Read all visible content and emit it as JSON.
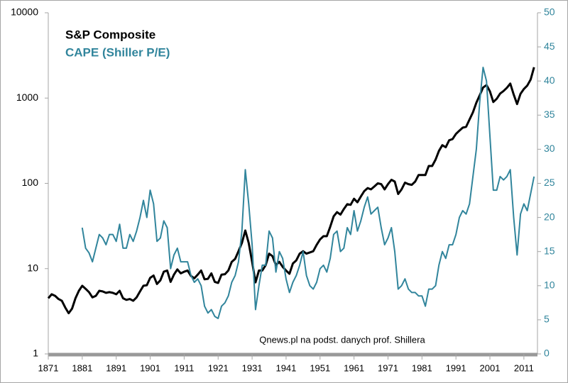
{
  "chart_data": {
    "type": "line",
    "ylog": true,
    "legend": "upper left",
    "annotation": "Qnews.pl na podst. danych prof. Shillera",
    "xlim": [
      1871,
      2015
    ],
    "xticks": [
      1871,
      1881,
      1891,
      1901,
      1911,
      1921,
      1931,
      1941,
      1951,
      1961,
      1971,
      1981,
      1991,
      2001,
      2011
    ],
    "ylim": [
      1,
      10000
    ],
    "yticks": [
      1,
      10,
      100,
      1000,
      10000
    ],
    "y2lim": [
      0,
      50
    ],
    "y2ticks": [
      0,
      5,
      10,
      15,
      20,
      25,
      30,
      35,
      40,
      45,
      50
    ],
    "x": [
      1871,
      1872,
      1873,
      1874,
      1875,
      1876,
      1877,
      1878,
      1879,
      1880,
      1881,
      1882,
      1883,
      1884,
      1885,
      1886,
      1887,
      1888,
      1889,
      1890,
      1891,
      1892,
      1893,
      1894,
      1895,
      1896,
      1897,
      1898,
      1899,
      1900,
      1901,
      1902,
      1903,
      1904,
      1905,
      1906,
      1907,
      1908,
      1909,
      1910,
      1911,
      1912,
      1913,
      1914,
      1915,
      1916,
      1917,
      1918,
      1919,
      1920,
      1921,
      1922,
      1923,
      1924,
      1925,
      1926,
      1927,
      1928,
      1929,
      1930,
      1931,
      1932,
      1933,
      1934,
      1935,
      1936,
      1937,
      1938,
      1939,
      1940,
      1941,
      1942,
      1943,
      1944,
      1945,
      1946,
      1947,
      1948,
      1949,
      1950,
      1951,
      1952,
      1953,
      1954,
      1955,
      1956,
      1957,
      1958,
      1959,
      1960,
      1961,
      1962,
      1963,
      1964,
      1965,
      1966,
      1967,
      1968,
      1969,
      1970,
      1971,
      1972,
      1973,
      1974,
      1975,
      1976,
      1977,
      1978,
      1979,
      1980,
      1981,
      1982,
      1983,
      1984,
      1985,
      1986,
      1987,
      1988,
      1989,
      1990,
      1991,
      1992,
      1993,
      1994,
      1995,
      1996,
      1997,
      1998,
      1999,
      2000,
      2001,
      2002,
      2003,
      2004,
      2005,
      2006,
      2007,
      2008,
      2009,
      2010,
      2011,
      2012,
      2013,
      2014
    ],
    "series": [
      {
        "name": "S&P Composite",
        "color": "#000000",
        "values": [
          4.5,
          5,
          4.8,
          4.4,
          4.2,
          3.5,
          3,
          3.4,
          4.5,
          5.5,
          6.3,
          5.8,
          5.3,
          4.6,
          4.8,
          5.5,
          5.4,
          5.2,
          5.3,
          5.2,
          5.0,
          5.5,
          4.5,
          4.3,
          4.4,
          4.2,
          4.6,
          5.4,
          6.3,
          6.4,
          7.8,
          8.3,
          6.6,
          7.3,
          9.2,
          9.5,
          7.0,
          8.5,
          9.8,
          8.8,
          9.2,
          9.5,
          8.2,
          7.7,
          8.5,
          9.5,
          7.5,
          7.6,
          8.8,
          7.0,
          6.8,
          8.5,
          8.6,
          9.5,
          12,
          13,
          16,
          20,
          28,
          20,
          12,
          6.9,
          9.5,
          9.5,
          11,
          15,
          14,
          11,
          12,
          10.5,
          9.5,
          8.7,
          11.5,
          12.5,
          15,
          16,
          15,
          15.5,
          16,
          19,
          22,
          24,
          24,
          31,
          41,
          46,
          43,
          50,
          57,
          56,
          66,
          60,
          70,
          81,
          88,
          85,
          92,
          100,
          98,
          85,
          98,
          110,
          105,
          75,
          85,
          102,
          98,
          96,
          105,
          125,
          125,
          125,
          160,
          160,
          190,
          240,
          280,
          265,
          320,
          330,
          380,
          415,
          450,
          460,
          560,
          680,
          880,
          1080,
          1330,
          1420,
          1200,
          900,
          980,
          1130,
          1210,
          1320,
          1480,
          1100,
          850,
          1120,
          1280,
          1400,
          1650,
          2300
        ]
      },
      {
        "name": "CAPE (Shiller P/E)",
        "color": "#31859c",
        "axis": "y2",
        "values": [
          null,
          null,
          null,
          null,
          null,
          null,
          null,
          null,
          null,
          null,
          18.5,
          15.5,
          14.8,
          13.5,
          15.5,
          17.5,
          17,
          16,
          17.5,
          17.5,
          16.5,
          19,
          15.5,
          15.5,
          17.5,
          16.5,
          18,
          20,
          22.5,
          20,
          24,
          22,
          16.5,
          17,
          19.5,
          18.5,
          12.5,
          14.5,
          15.5,
          13.5,
          13.5,
          13.5,
          11.5,
          10.5,
          11,
          10,
          7,
          6,
          6.5,
          5.5,
          5.2,
          7,
          7.5,
          8.5,
          10.5,
          11.5,
          13.5,
          18,
          27,
          22,
          16,
          6.5,
          10,
          13,
          13,
          18,
          17,
          12,
          15,
          14,
          11,
          9,
          10.5,
          11.5,
          13,
          15,
          11.5,
          10,
          9.5,
          10.5,
          12.5,
          13,
          12,
          14,
          17.5,
          18,
          15,
          15.5,
          18.5,
          17.5,
          21,
          18,
          19.5,
          21.5,
          23,
          20.5,
          21,
          21.5,
          18.5,
          16,
          17,
          18.5,
          15,
          9.5,
          10,
          11,
          9.5,
          9,
          9,
          8.5,
          8.5,
          7,
          9.5,
          9.5,
          10,
          13,
          15,
          14,
          16,
          16,
          17.5,
          20,
          21,
          20.5,
          22,
          26,
          30,
          37,
          42,
          40,
          32,
          24,
          24,
          26,
          25.5,
          26,
          27,
          20,
          14.5,
          20.5,
          22,
          21,
          23.5,
          26
        ]
      }
    ]
  }
}
